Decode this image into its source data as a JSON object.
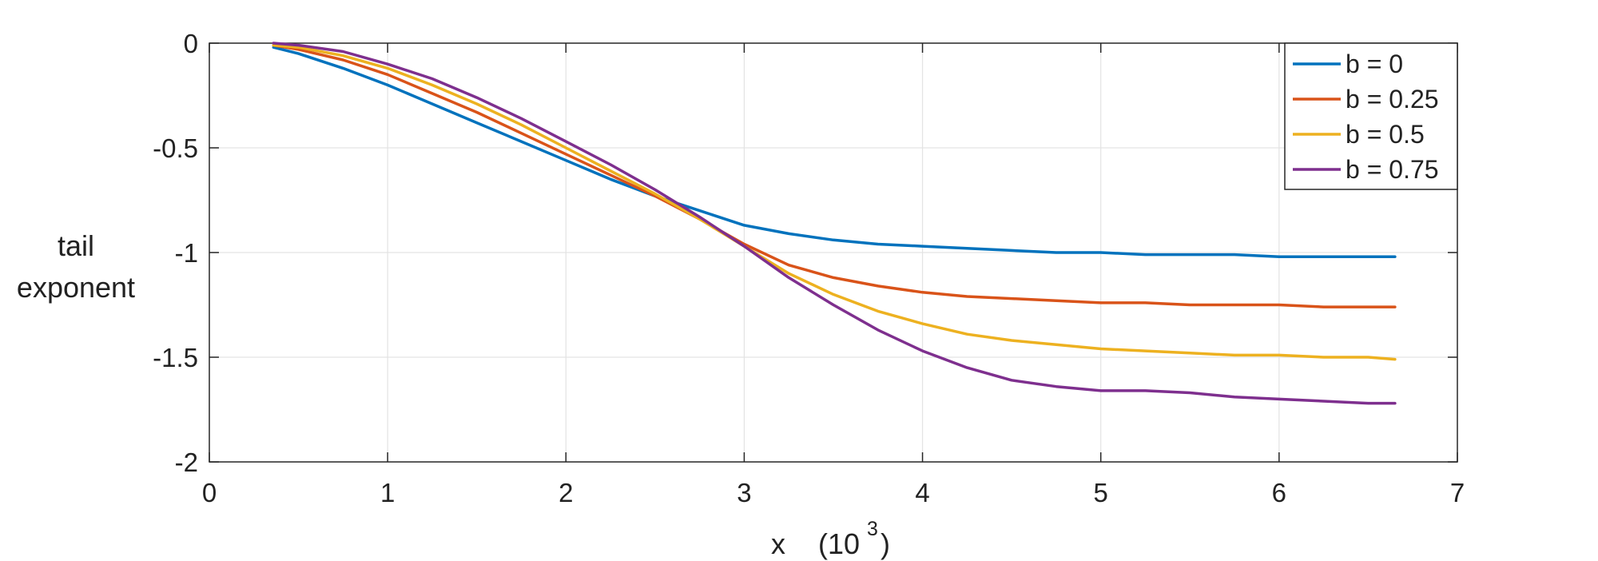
{
  "chart_data": {
    "type": "line",
    "title": "",
    "xlabel": "x",
    "xlabel_unit": "(10",
    "xlabel_exp": "3",
    "xlabel_close": ")",
    "ylabel_lines": [
      "tail",
      "exponent"
    ],
    "xlim": [
      0,
      7
    ],
    "ylim": [
      -2,
      0
    ],
    "xticks": [
      0,
      1,
      2,
      3,
      4,
      5,
      6,
      7
    ],
    "xtick_labels": [
      "0",
      "1",
      "2",
      "3",
      "4",
      "5",
      "6",
      "7"
    ],
    "yticks": [
      0,
      -0.5,
      -1,
      -1.5,
      -2
    ],
    "ytick_labels": [
      "0",
      "-0.5",
      "-1",
      "-1.5",
      "-2"
    ],
    "grid": true,
    "legend_position": "top-right",
    "x": [
      0.36,
      0.5,
      0.75,
      1.0,
      1.25,
      1.5,
      1.75,
      2.0,
      2.25,
      2.5,
      2.75,
      3.0,
      3.25,
      3.5,
      3.75,
      4.0,
      4.25,
      4.5,
      4.75,
      5.0,
      5.25,
      5.5,
      5.75,
      6.0,
      6.25,
      6.5,
      6.65
    ],
    "series": [
      {
        "name": "b = 0",
        "color": "#0072BD",
        "values": [
          -0.02,
          -0.05,
          -0.12,
          -0.2,
          -0.29,
          -0.38,
          -0.47,
          -0.56,
          -0.65,
          -0.73,
          -0.8,
          -0.87,
          -0.91,
          -0.94,
          -0.96,
          -0.97,
          -0.98,
          -0.99,
          -1.0,
          -1.0,
          -1.01,
          -1.01,
          -1.01,
          -1.02,
          -1.02,
          -1.02,
          -1.02
        ]
      },
      {
        "name": "b = 0.25",
        "color": "#D95319",
        "values": [
          -0.01,
          -0.03,
          -0.08,
          -0.15,
          -0.24,
          -0.33,
          -0.43,
          -0.53,
          -0.63,
          -0.73,
          -0.84,
          -0.96,
          -1.06,
          -1.12,
          -1.16,
          -1.19,
          -1.21,
          -1.22,
          -1.23,
          -1.24,
          -1.24,
          -1.25,
          -1.25,
          -1.25,
          -1.26,
          -1.26,
          -1.26
        ]
      },
      {
        "name": "b = 0.5",
        "color": "#EDB120",
        "values": [
          -0.01,
          -0.02,
          -0.06,
          -0.12,
          -0.2,
          -0.29,
          -0.39,
          -0.5,
          -0.61,
          -0.72,
          -0.84,
          -0.97,
          -1.1,
          -1.2,
          -1.28,
          -1.34,
          -1.39,
          -1.42,
          -1.44,
          -1.46,
          -1.47,
          -1.48,
          -1.49,
          -1.49,
          -1.5,
          -1.5,
          -1.51
        ]
      },
      {
        "name": "b = 0.75",
        "color": "#7E2F8E",
        "values": [
          0.0,
          -0.01,
          -0.04,
          -0.1,
          -0.17,
          -0.26,
          -0.36,
          -0.47,
          -0.58,
          -0.7,
          -0.83,
          -0.97,
          -1.12,
          -1.25,
          -1.37,
          -1.47,
          -1.55,
          -1.61,
          -1.64,
          -1.66,
          -1.66,
          -1.67,
          -1.69,
          -1.7,
          -1.71,
          -1.72,
          -1.72
        ]
      }
    ]
  }
}
